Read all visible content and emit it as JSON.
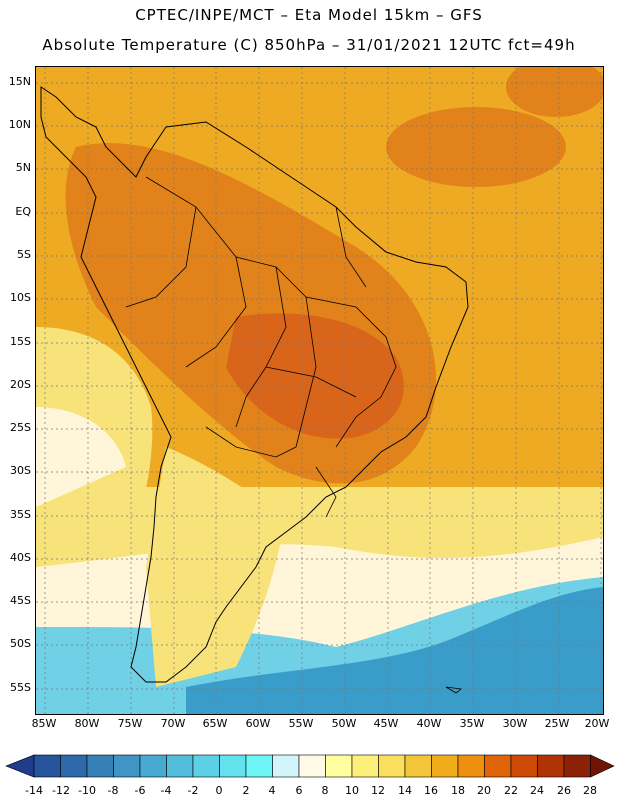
{
  "title": {
    "line1": "CPTEC/INPE/MCT –  Eta Model 15km – GFS",
    "line2": "Absolute Temperature (C) 850hPa – 31/01/2021 12UTC fct=49h"
  },
  "map": {
    "lat_labels": [
      "15N",
      "10N",
      "5N",
      "EQ",
      "5S",
      "10S",
      "15S",
      "20S",
      "25S",
      "30S",
      "35S",
      "40S",
      "45S",
      "50S",
      "55S"
    ],
    "lon_labels": [
      "85W",
      "80W",
      "75W",
      "70W",
      "65W",
      "60W",
      "55W",
      "50W",
      "45W",
      "40W",
      "35W",
      "30W",
      "25W",
      "20W"
    ]
  },
  "colorbar": {
    "labels": [
      "-14",
      "-12",
      "-10",
      "-8",
      "-6",
      "-4",
      "-2",
      "0",
      "2",
      "4",
      "6",
      "8",
      "10",
      "12",
      "14",
      "16",
      "18",
      "20",
      "22",
      "24",
      "26",
      "28"
    ],
    "colors": [
      "#1f3d8a",
      "#26549c",
      "#2e6aab",
      "#3680b8",
      "#3f96c4",
      "#48aad0",
      "#52bedb",
      "#5cd0e4",
      "#63e2ee",
      "#6ef6f6",
      "#d2f5fb",
      "#fffae6",
      "#ffffa0",
      "#fdf07a",
      "#f9df5c",
      "#f2c53b",
      "#f0ac1a",
      "#ee8f0e",
      "#e0650a",
      "#cc4a06",
      "#b03306",
      "#8c2107",
      "#6f1507"
    ],
    "min_color": "#1f3d8a",
    "max_color": "#6f1507"
  },
  "field_colors": {
    "cold_ocean": "#3a9cc8",
    "cool_ocean": "#6fd0e6",
    "pale": "#fff6da",
    "yellow": "#f8e27a",
    "gold": "#f2c23c",
    "orange": "#eeaa23",
    "dark_orange": "#e2821a",
    "hot": "#d8651a"
  }
}
